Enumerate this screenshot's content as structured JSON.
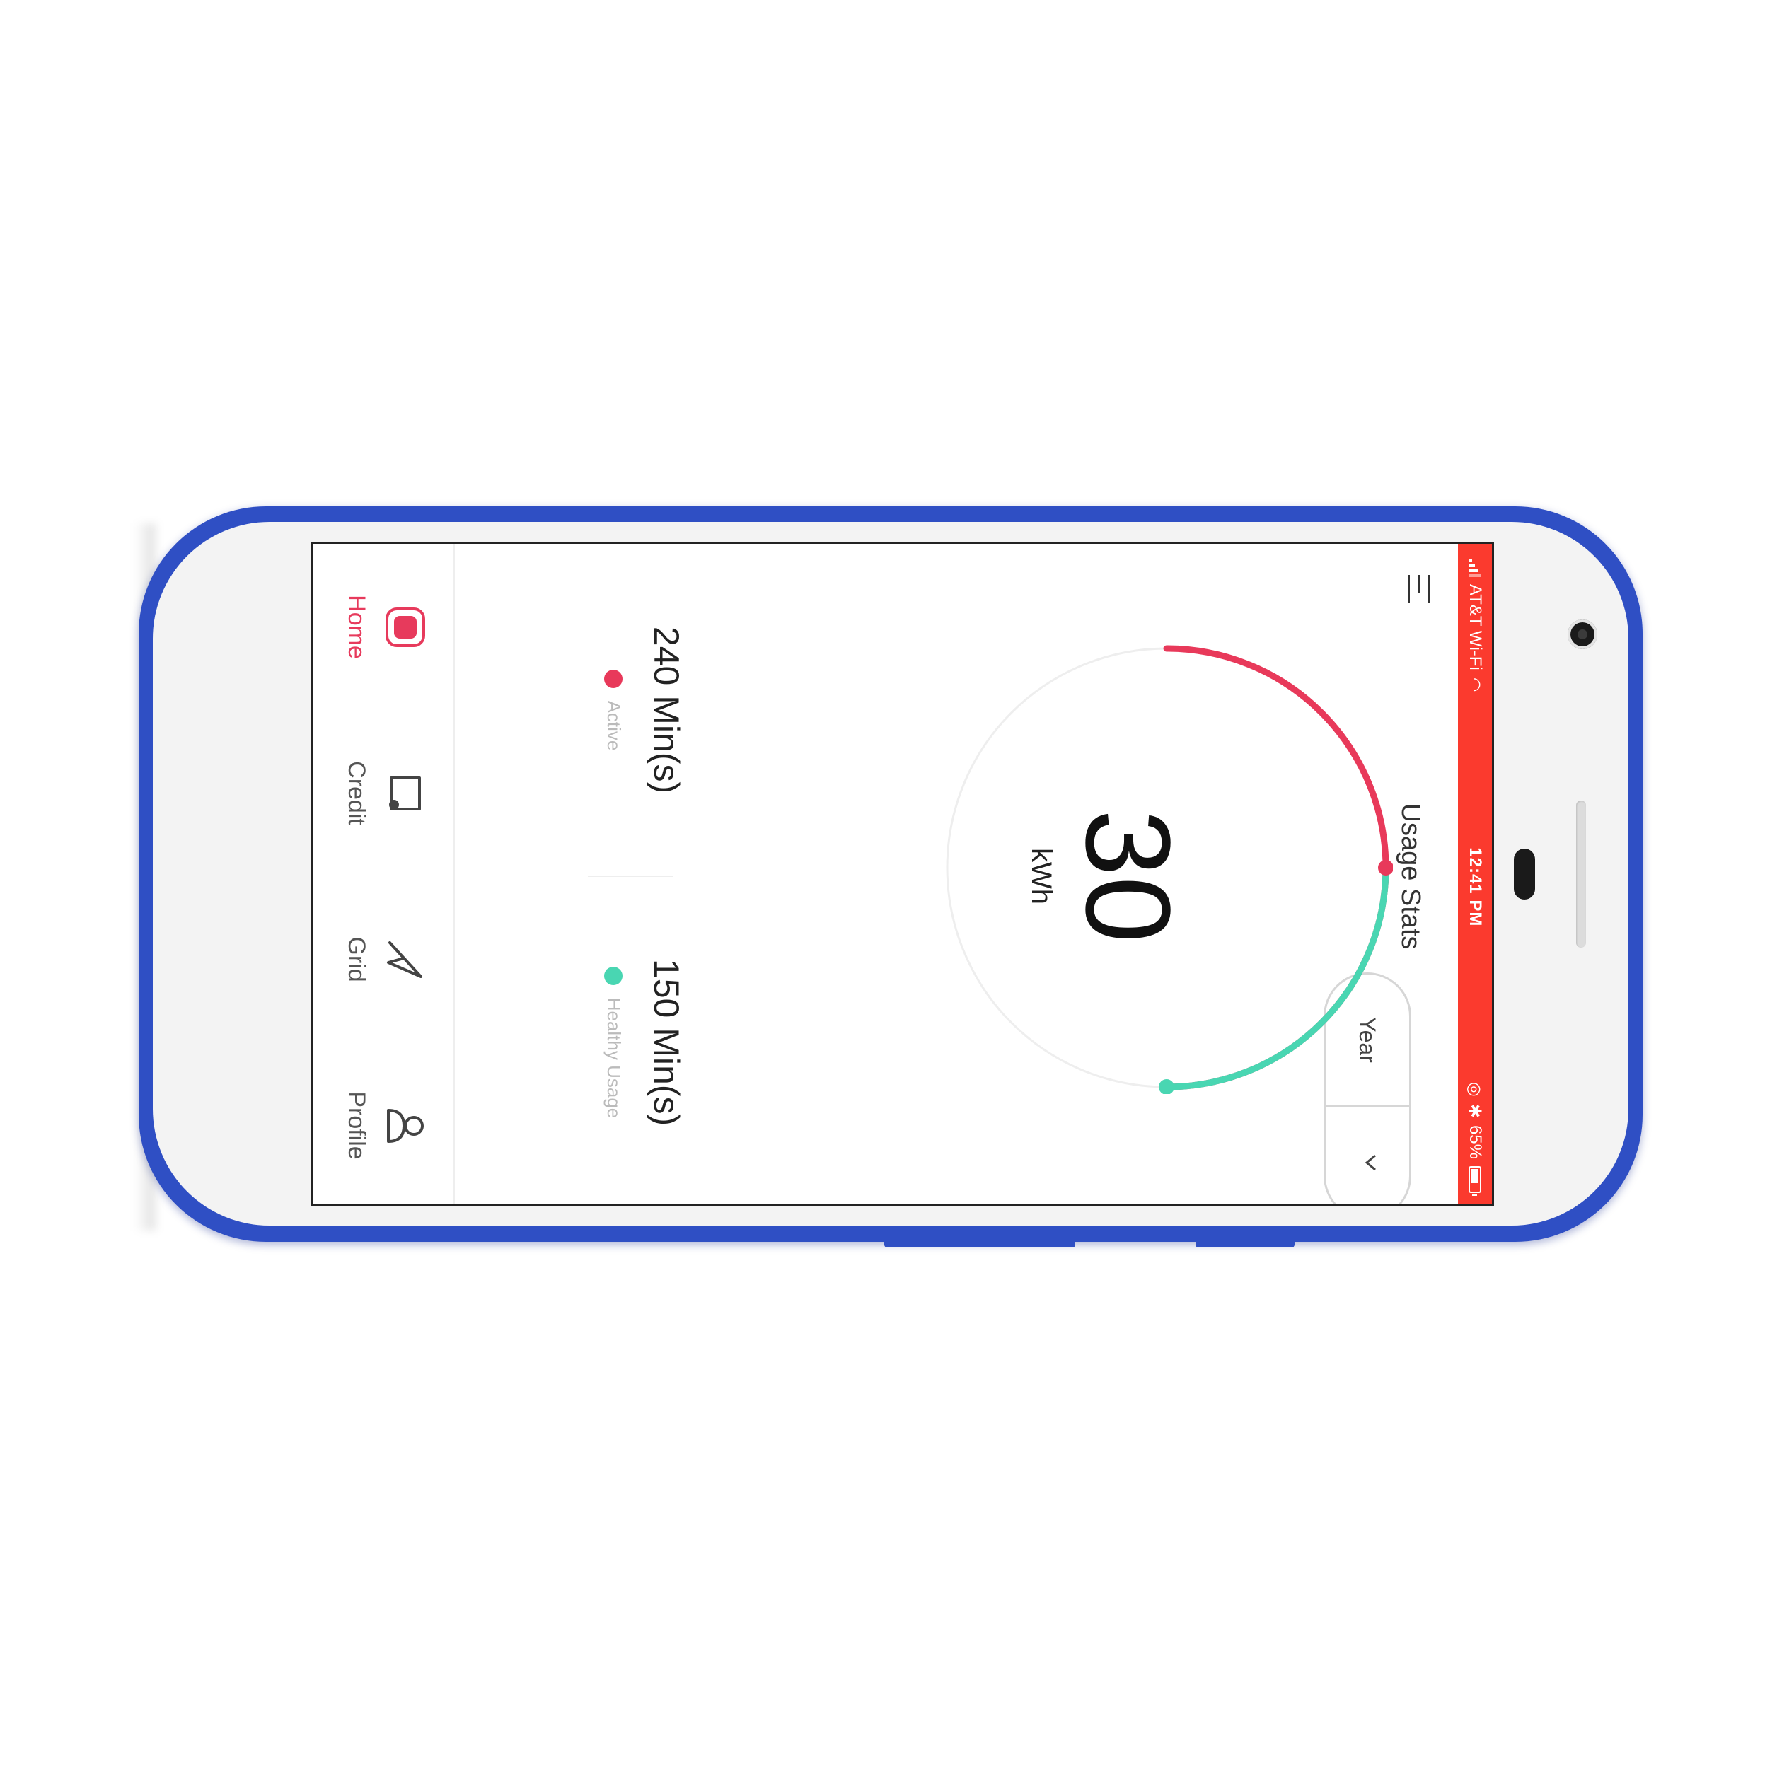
{
  "status_bar": {
    "carrier": "AT&T Wi-Fi",
    "time": "12:41 PM",
    "battery": "65%",
    "color": "#fb3a2e"
  },
  "header": {
    "title": "Usage Stats",
    "menu_icon": "menu-icon"
  },
  "period_selector": {
    "selected": "Year",
    "chevron_icon": "chevron-down-icon"
  },
  "gauge": {
    "value": "30",
    "unit": "kWh",
    "active_color": "#e8395a",
    "healthy_color": "#49d6b2",
    "track_color": "#eeeeee"
  },
  "stats": [
    {
      "value": "240 Min(s)",
      "label": "Active",
      "color": "#e8395a"
    },
    {
      "value": "150 Min(s)",
      "label": "Healthy Usage",
      "color": "#49d6b2"
    }
  ],
  "tabs": [
    {
      "label": "Home",
      "icon": "home-icon",
      "active": true
    },
    {
      "label": "Credit",
      "icon": "credit-icon",
      "active": false
    },
    {
      "label": "Grid",
      "icon": "grid-icon",
      "active": false
    },
    {
      "label": "Profile",
      "icon": "profile-icon",
      "active": false
    }
  ]
}
